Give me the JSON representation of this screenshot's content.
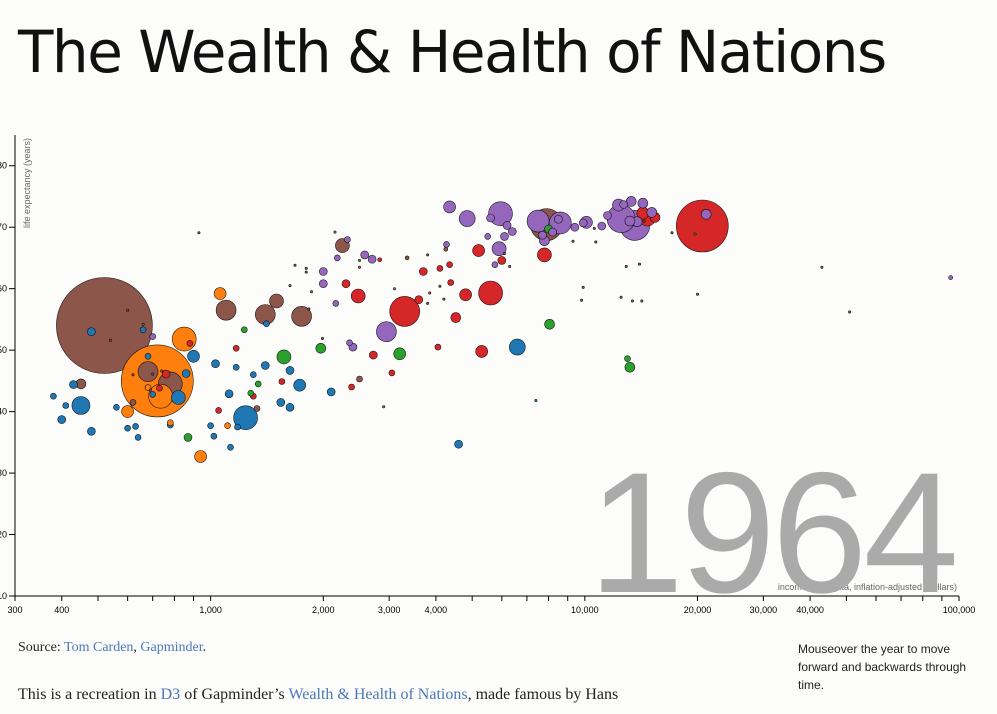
{
  "page": {
    "title": "The Wealth & Health of Nations"
  },
  "source": {
    "prefix": "Source: ",
    "link1": "Tom Carden",
    "sep": ", ",
    "link2": "Gapminder",
    "suffix": "."
  },
  "intro": {
    "part1": "This is a recreation in ",
    "link1": "D3",
    "part2": " of Gapminder’s ",
    "link2": "Wealth & Health of Nations",
    "part3": ", made famous by Hans"
  },
  "hint": {
    "text": "Mouseover the year to move forward and backwards through time."
  },
  "colors": {
    "blue": "#1f77b4",
    "orange": "#ff7f0e",
    "green": "#2ca02c",
    "red": "#d62728",
    "purple": "#9467bd",
    "brown": "#8c564b",
    "year": "#aaaaaa"
  },
  "chart_data": {
    "type": "scatter",
    "year_label": "1964",
    "xlabel": "income per capita, inflation-adjusted (dollars)",
    "ylabel": "life expectancy (years)",
    "x_scale": "log",
    "xlim": [
      300,
      100000
    ],
    "ylim": [
      10,
      85
    ],
    "x_ticks": [
      300,
      400,
      1000,
      2000,
      3000,
      4000,
      10000,
      20000,
      30000,
      40000,
      100000
    ],
    "x_tick_labels": [
      "300",
      "400",
      "1,000",
      "2,000",
      "3,000",
      "4,000",
      "10,000",
      "20,000",
      "30,000",
      "40,000",
      "100,000"
    ],
    "y_ticks": [
      10,
      20,
      30,
      40,
      50,
      60,
      70,
      80
    ],
    "y_tick_labels": [
      "10",
      "20",
      "30",
      "40",
      "50",
      "60",
      "70",
      "80"
    ],
    "grid": false,
    "points": [
      {
        "x": 520,
        "y": 54,
        "r": 48,
        "c": "brown"
      },
      {
        "x": 720,
        "y": 45,
        "r": 36,
        "c": "orange"
      },
      {
        "x": 20600,
        "y": 70.2,
        "r": 26,
        "c": "red"
      },
      {
        "x": 7900,
        "y": 70.4,
        "r": 16,
        "c": "brown"
      },
      {
        "x": 13600,
        "y": 70.3,
        "r": 15,
        "c": "purple"
      },
      {
        "x": 12500,
        "y": 71.4,
        "r": 14,
        "c": "purple"
      },
      {
        "x": 3300,
        "y": 56.3,
        "r": 15,
        "c": "red"
      },
      {
        "x": 1240,
        "y": 39,
        "r": 12,
        "c": "blue"
      },
      {
        "x": 5950,
        "y": 72.2,
        "r": 12,
        "c": "purple"
      },
      {
        "x": 7500,
        "y": 71,
        "r": 11,
        "c": "purple"
      },
      {
        "x": 5600,
        "y": 59.3,
        "r": 12,
        "c": "red"
      },
      {
        "x": 8600,
        "y": 70.7,
        "r": 11,
        "c": "purple"
      },
      {
        "x": 2950,
        "y": 53,
        "r": 10,
        "c": "purple"
      },
      {
        "x": 850,
        "y": 51.8,
        "r": 12,
        "c": "orange"
      },
      {
        "x": 780,
        "y": 44.5,
        "r": 12,
        "c": "brown"
      },
      {
        "x": 735,
        "y": 42.5,
        "r": 12,
        "c": "orange"
      },
      {
        "x": 680,
        "y": 46.5,
        "r": 10,
        "c": "brown"
      },
      {
        "x": 1750,
        "y": 55.5,
        "r": 10,
        "c": "brown"
      },
      {
        "x": 1400,
        "y": 55.8,
        "r": 10,
        "c": "brown"
      },
      {
        "x": 1100,
        "y": 56.5,
        "r": 10,
        "c": "brown"
      },
      {
        "x": 14700,
        "y": 71.5,
        "r": 8,
        "c": "red"
      },
      {
        "x": 4850,
        "y": 71.4,
        "r": 8,
        "c": "purple"
      },
      {
        "x": 450,
        "y": 41,
        "r": 9,
        "c": "blue"
      },
      {
        "x": 6600,
        "y": 50.5,
        "r": 8,
        "c": "blue"
      },
      {
        "x": 5900,
        "y": 66.5,
        "r": 7,
        "c": "purple"
      },
      {
        "x": 7800,
        "y": 65.5,
        "r": 7,
        "c": "red"
      },
      {
        "x": 4800,
        "y": 59,
        "r": 6,
        "c": "red"
      },
      {
        "x": 2480,
        "y": 58.8,
        "r": 7,
        "c": "red"
      },
      {
        "x": 1500,
        "y": 58,
        "r": 7,
        "c": "brown"
      },
      {
        "x": 1060,
        "y": 59.2,
        "r": 6,
        "c": "orange"
      },
      {
        "x": 2250,
        "y": 67,
        "r": 7,
        "c": "brown"
      },
      {
        "x": 5200,
        "y": 66.2,
        "r": 6,
        "c": "red"
      },
      {
        "x": 4350,
        "y": 73.3,
        "r": 6,
        "c": "purple"
      },
      {
        "x": 12300,
        "y": 73.6,
        "r": 6,
        "c": "purple"
      },
      {
        "x": 10100,
        "y": 70.8,
        "r": 6,
        "c": "purple"
      },
      {
        "x": 1570,
        "y": 48.9,
        "r": 7,
        "c": "green"
      },
      {
        "x": 3200,
        "y": 49.4,
        "r": 6,
        "c": "green"
      },
      {
        "x": 5300,
        "y": 49.8,
        "r": 6,
        "c": "red"
      },
      {
        "x": 900,
        "y": 49,
        "r": 6,
        "c": "blue"
      },
      {
        "x": 820,
        "y": 42.3,
        "r": 7,
        "c": "blue"
      },
      {
        "x": 940,
        "y": 32.7,
        "r": 6,
        "c": "orange"
      },
      {
        "x": 600,
        "y": 40,
        "r": 6,
        "c": "orange"
      },
      {
        "x": 1730,
        "y": 44.3,
        "r": 6,
        "c": "blue"
      },
      {
        "x": 1970,
        "y": 50.3,
        "r": 5,
        "c": "green"
      },
      {
        "x": 4520,
        "y": 55.3,
        "r": 5,
        "c": "red"
      },
      {
        "x": 8050,
        "y": 54.2,
        "r": 5,
        "c": "green"
      },
      {
        "x": 13200,
        "y": 47.2,
        "r": 5,
        "c": "green"
      },
      {
        "x": 4600,
        "y": 34.7,
        "r": 4,
        "c": "blue"
      },
      {
        "x": 11100,
        "y": 70.2,
        "r": 4,
        "c": "purple"
      },
      {
        "x": 14300,
        "y": 73.9,
        "r": 5,
        "c": "purple"
      },
      {
        "x": 7700,
        "y": 68.7,
        "r": 4,
        "c": "purple"
      },
      {
        "x": 6400,
        "y": 69.3,
        "r": 4,
        "c": "purple"
      },
      {
        "x": 6000,
        "y": 64.6,
        "r": 4,
        "c": "red"
      },
      {
        "x": 9400,
        "y": 70,
        "r": 4,
        "c": "purple"
      },
      {
        "x": 2700,
        "y": 64.8,
        "r": 4,
        "c": "purple"
      },
      {
        "x": 2000,
        "y": 60.8,
        "r": 4,
        "c": "purple"
      },
      {
        "x": 2300,
        "y": 60.8,
        "r": 4,
        "c": "red"
      },
      {
        "x": 3700,
        "y": 62.8,
        "r": 4,
        "c": "red"
      },
      {
        "x": 2000,
        "y": 62.8,
        "r": 4,
        "c": "purple"
      },
      {
        "x": 2400,
        "y": 50.5,
        "r": 4,
        "c": "purple"
      },
      {
        "x": 2720,
        "y": 49.2,
        "r": 4,
        "c": "red"
      },
      {
        "x": 3600,
        "y": 58.2,
        "r": 4,
        "c": "red"
      },
      {
        "x": 4100,
        "y": 63.3,
        "r": 3,
        "c": "red"
      },
      {
        "x": 4380,
        "y": 61,
        "r": 3,
        "c": "red"
      },
      {
        "x": 4350,
        "y": 63.9,
        "r": 3,
        "c": "red"
      },
      {
        "x": 5750,
        "y": 63.9,
        "r": 3,
        "c": "purple"
      },
      {
        "x": 2350,
        "y": 51.2,
        "r": 3,
        "c": "purple"
      },
      {
        "x": 3050,
        "y": 46.3,
        "r": 3,
        "c": "red"
      },
      {
        "x": 2500,
        "y": 45.3,
        "r": 3,
        "c": "brown"
      },
      {
        "x": 4050,
        "y": 50.5,
        "r": 3,
        "c": "red"
      },
      {
        "x": 2580,
        "y": 65.5,
        "r": 4,
        "c": "purple"
      },
      {
        "x": 2320,
        "y": 68,
        "r": 3,
        "c": "purple"
      },
      {
        "x": 2160,
        "y": 57.6,
        "r": 3,
        "c": "purple"
      },
      {
        "x": 2180,
        "y": 65,
        "r": 3,
        "c": "purple"
      },
      {
        "x": 4270,
        "y": 67.2,
        "r": 3,
        "c": "purple"
      },
      {
        "x": 1400,
        "y": 47.5,
        "r": 4,
        "c": "blue"
      },
      {
        "x": 1540,
        "y": 41.5,
        "r": 4,
        "c": "blue"
      },
      {
        "x": 1630,
        "y": 40.7,
        "r": 4,
        "c": "blue"
      },
      {
        "x": 1030,
        "y": 47.8,
        "r": 4,
        "c": "blue"
      },
      {
        "x": 1120,
        "y": 42.9,
        "r": 4,
        "c": "blue"
      },
      {
        "x": 1630,
        "y": 46.7,
        "r": 4,
        "c": "blue"
      },
      {
        "x": 860,
        "y": 46.2,
        "r": 4,
        "c": "blue"
      },
      {
        "x": 870,
        "y": 35.8,
        "r": 4,
        "c": "green"
      },
      {
        "x": 1000,
        "y": 37.7,
        "r": 3,
        "c": "blue"
      },
      {
        "x": 1300,
        "y": 42.5,
        "r": 3,
        "c": "red"
      },
      {
        "x": 1550,
        "y": 44.9,
        "r": 3,
        "c": "red"
      },
      {
        "x": 2100,
        "y": 43.2,
        "r": 4,
        "c": "blue"
      },
      {
        "x": 2380,
        "y": 44,
        "r": 3,
        "c": "red"
      },
      {
        "x": 1050,
        "y": 40.2,
        "r": 3,
        "c": "red"
      },
      {
        "x": 1330,
        "y": 40.5,
        "r": 3,
        "c": "brown"
      },
      {
        "x": 1280,
        "y": 43,
        "r": 3,
        "c": "green"
      },
      {
        "x": 1020,
        "y": 36,
        "r": 3,
        "c": "blue"
      },
      {
        "x": 1130,
        "y": 34.2,
        "r": 3,
        "c": "blue"
      },
      {
        "x": 1170,
        "y": 47.2,
        "r": 3,
        "c": "blue"
      },
      {
        "x": 1300,
        "y": 46,
        "r": 3,
        "c": "blue"
      },
      {
        "x": 1110,
        "y": 37.7,
        "r": 3,
        "c": "orange"
      },
      {
        "x": 1180,
        "y": 37.5,
        "r": 3,
        "c": "blue"
      },
      {
        "x": 1170,
        "y": 50.3,
        "r": 3,
        "c": "red"
      },
      {
        "x": 1230,
        "y": 53.3,
        "r": 3,
        "c": "green"
      },
      {
        "x": 1410,
        "y": 54.3,
        "r": 3,
        "c": "blue"
      },
      {
        "x": 1340,
        "y": 44.5,
        "r": 3,
        "c": "green"
      },
      {
        "x": 480,
        "y": 36.8,
        "r": 4,
        "c": "blue"
      },
      {
        "x": 430,
        "y": 44.4,
        "r": 4,
        "c": "blue"
      },
      {
        "x": 400,
        "y": 38.7,
        "r": 4,
        "c": "blue"
      },
      {
        "x": 380,
        "y": 42.5,
        "r": 3,
        "c": "blue"
      },
      {
        "x": 410,
        "y": 41,
        "r": 3,
        "c": "blue"
      },
      {
        "x": 450,
        "y": 44.5,
        "r": 5,
        "c": "brown"
      },
      {
        "x": 480,
        "y": 53,
        "r": 4,
        "c": "blue"
      },
      {
        "x": 600,
        "y": 37.3,
        "r": 3,
        "c": "blue"
      },
      {
        "x": 640,
        "y": 35.8,
        "r": 3,
        "c": "blue"
      },
      {
        "x": 760,
        "y": 46.1,
        "r": 4,
        "c": "red"
      },
      {
        "x": 730,
        "y": 43.8,
        "r": 3,
        "c": "red"
      },
      {
        "x": 780,
        "y": 37.8,
        "r": 3,
        "c": "blue"
      },
      {
        "x": 780,
        "y": 38.2,
        "r": 3,
        "c": "orange"
      },
      {
        "x": 630,
        "y": 37.6,
        "r": 3,
        "c": "blue"
      },
      {
        "x": 880,
        "y": 51.1,
        "r": 3,
        "c": "red"
      },
      {
        "x": 700,
        "y": 52.2,
        "r": 3,
        "c": "purple"
      },
      {
        "x": 680,
        "y": 49,
        "r": 3,
        "c": "blue"
      },
      {
        "x": 660,
        "y": 53.3,
        "r": 3,
        "c": "blue"
      },
      {
        "x": 560,
        "y": 40.7,
        "r": 3,
        "c": "blue"
      },
      {
        "x": 620,
        "y": 41.5,
        "r": 3,
        "c": "brown"
      },
      {
        "x": 700,
        "y": 42.8,
        "r": 3,
        "c": "blue"
      },
      {
        "x": 680,
        "y": 43.9,
        "r": 3,
        "c": "orange"
      },
      {
        "x": 14300,
        "y": 72.3,
        "r": 6,
        "c": "red"
      },
      {
        "x": 13800,
        "y": 70.9,
        "r": 5,
        "c": "purple"
      },
      {
        "x": 15400,
        "y": 71.6,
        "r": 5,
        "c": "red"
      },
      {
        "x": 13300,
        "y": 74.2,
        "r": 5,
        "c": "purple"
      },
      {
        "x": 15100,
        "y": 72.4,
        "r": 5,
        "c": "purple"
      },
      {
        "x": 21100,
        "y": 72.1,
        "r": 5,
        "c": "purple"
      },
      {
        "x": 7800,
        "y": 67.8,
        "r": 5,
        "c": "purple"
      },
      {
        "x": 8000,
        "y": 69.7,
        "r": 4,
        "c": "green"
      },
      {
        "x": 9900,
        "y": 70.7,
        "r": 4,
        "c": "purple"
      },
      {
        "x": 8200,
        "y": 69.2,
        "r": 4,
        "c": "purple"
      },
      {
        "x": 8500,
        "y": 71.3,
        "r": 4,
        "c": "purple"
      },
      {
        "x": 11500,
        "y": 71.9,
        "r": 4,
        "c": "purple"
      },
      {
        "x": 12700,
        "y": 73.7,
        "r": 4,
        "c": "purple"
      },
      {
        "x": 6200,
        "y": 70.3,
        "r": 4,
        "c": "purple"
      },
      {
        "x": 5600,
        "y": 71.5,
        "r": 4,
        "c": "purple"
      },
      {
        "x": 6100,
        "y": 68.5,
        "r": 4,
        "c": "purple"
      },
      {
        "x": 13200,
        "y": 71,
        "r": 5,
        "c": "purple"
      },
      {
        "x": 13000,
        "y": 48.6,
        "r": 3,
        "c": "green"
      },
      {
        "x": 5500,
        "y": 68.5,
        "r": 3,
        "c": "purple"
      },
      {
        "x": 4250,
        "y": 66.4,
        "r": 2,
        "c": "brown"
      },
      {
        "x": 95000,
        "y": 61.8,
        "r": 2,
        "c": "purple"
      },
      {
        "x": 3350,
        "y": 65,
        "r": 2,
        "c": "brown"
      },
      {
        "x": 2830,
        "y": 64.7,
        "r": 2,
        "c": "red"
      },
      {
        "x": 1800,
        "y": 63.3,
        "r": 1.2,
        "c": "brown"
      },
      {
        "x": 1680,
        "y": 63.8,
        "r": 1.2,
        "c": "brown"
      },
      {
        "x": 2900,
        "y": 40.8,
        "r": 1.2,
        "c": "brown"
      },
      {
        "x": 3100,
        "y": 60,
        "r": 1.2,
        "c": "purple"
      },
      {
        "x": 2150,
        "y": 69.2,
        "r": 1.2,
        "c": "purple"
      },
      {
        "x": 3800,
        "y": 65.5,
        "r": 1.2,
        "c": "brown"
      },
      {
        "x": 20000,
        "y": 59.1,
        "r": 1.2,
        "c": "brown"
      },
      {
        "x": 19700,
        "y": 68.9,
        "r": 1.2,
        "c": "green"
      },
      {
        "x": 43000,
        "y": 63.5,
        "r": 1.2,
        "c": "brown"
      },
      {
        "x": 51000,
        "y": 56.2,
        "r": 1.2,
        "c": "brown"
      },
      {
        "x": 13400,
        "y": 58,
        "r": 1.2,
        "c": "brown"
      },
      {
        "x": 14200,
        "y": 58,
        "r": 1.2,
        "c": "brown"
      },
      {
        "x": 9800,
        "y": 58.1,
        "r": 1.2,
        "c": "brown"
      },
      {
        "x": 9900,
        "y": 60.2,
        "r": 1.2,
        "c": "brown"
      },
      {
        "x": 7400,
        "y": 41.8,
        "r": 1.2,
        "c": "blue"
      },
      {
        "x": 930,
        "y": 69.1,
        "r": 1.2,
        "c": "brown"
      },
      {
        "x": 10700,
        "y": 67.6,
        "r": 1.2,
        "c": "brown"
      },
      {
        "x": 3850,
        "y": 59.3,
        "r": 1.2,
        "c": "brown"
      },
      {
        "x": 10600,
        "y": 69.8,
        "r": 1.2,
        "c": "brown"
      },
      {
        "x": 17100,
        "y": 69.1,
        "r": 1.2,
        "c": "brown"
      },
      {
        "x": 14400,
        "y": 71,
        "r": 1.2,
        "c": "brown"
      },
      {
        "x": 9300,
        "y": 67.7,
        "r": 1.2,
        "c": "brown"
      },
      {
        "x": 2500,
        "y": 64.6,
        "r": 1.2,
        "c": "green"
      },
      {
        "x": 1860,
        "y": 59.5,
        "r": 1.2,
        "c": "brown"
      },
      {
        "x": 1830,
        "y": 56.7,
        "r": 1.2,
        "c": "brown"
      },
      {
        "x": 6100,
        "y": 65.7,
        "r": 1.2,
        "c": "brown"
      },
      {
        "x": 6300,
        "y": 63.6,
        "r": 1.2,
        "c": "brown"
      },
      {
        "x": 1990,
        "y": 51.9,
        "r": 1.2,
        "c": "brown"
      },
      {
        "x": 1630,
        "y": 60.5,
        "r": 1.2,
        "c": "brown"
      },
      {
        "x": 1800,
        "y": 62.7,
        "r": 1.2,
        "c": "brown"
      },
      {
        "x": 2500,
        "y": 63.5,
        "r": 1.2,
        "c": "brown"
      },
      {
        "x": 4100,
        "y": 60.4,
        "r": 1.2,
        "c": "brown"
      },
      {
        "x": 4200,
        "y": 58.3,
        "r": 1.2,
        "c": "brown"
      },
      {
        "x": 3800,
        "y": 57.6,
        "r": 1.2,
        "c": "brown"
      },
      {
        "x": 12500,
        "y": 58.6,
        "r": 1.2,
        "c": "brown"
      },
      {
        "x": 12900,
        "y": 63.6,
        "r": 1.2,
        "c": "brown"
      },
      {
        "x": 14000,
        "y": 64,
        "r": 1.2,
        "c": "brown"
      },
      {
        "x": 600,
        "y": 56.5,
        "r": 1.2,
        "c": "brown"
      },
      {
        "x": 620,
        "y": 46,
        "r": 1.2,
        "c": "brown"
      },
      {
        "x": 700,
        "y": 46.1,
        "r": 1.2,
        "c": "brown"
      },
      {
        "x": 740,
        "y": 46.6,
        "r": 1.2,
        "c": "brown"
      },
      {
        "x": 690,
        "y": 43.5,
        "r": 1.2,
        "c": "brown"
      },
      {
        "x": 540,
        "y": 51.6,
        "r": 1.2,
        "c": "brown"
      },
      {
        "x": 660,
        "y": 54.2,
        "r": 1.2,
        "c": "brown"
      }
    ]
  }
}
